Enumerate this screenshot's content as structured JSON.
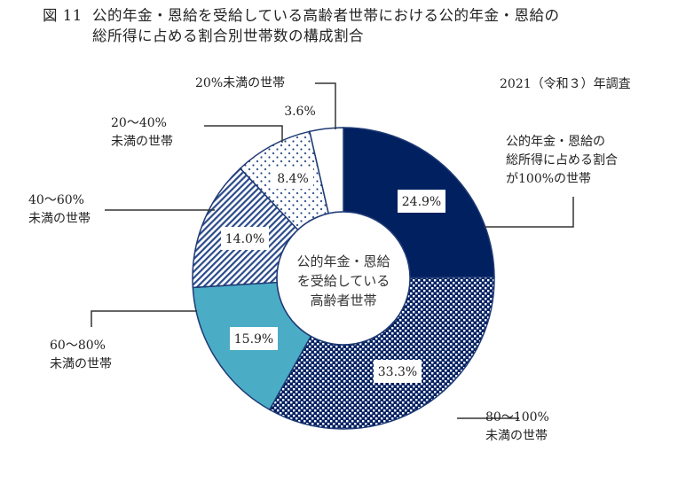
{
  "title": {
    "figure_no": "図 11",
    "line1": "公的年金・恩給を受給している高齢者世帯における公的年金・恩給の",
    "line2": "総所得に占める割合別世帯数の構成割合"
  },
  "survey_note": "2021（令和３）年調査",
  "center_label": [
    "公的年金・恩給",
    "を受給している",
    "高齢者世帯"
  ],
  "legend_labels": {
    "s100": [
      "公的年金・恩給の",
      "総所得に占める割合",
      "が100%の世帯"
    ],
    "s80_100": [
      "80～100%",
      "未満の世帯"
    ],
    "s60_80": [
      "60～80%",
      "未満の世帯"
    ],
    "s40_60": [
      "40～60%",
      "未満の世帯"
    ],
    "s20_40": [
      "20～40%",
      "未満の世帯"
    ],
    "s0_20": [
      "20%未満の世帯"
    ]
  },
  "value_labels": {
    "s100": "24.9%",
    "s80_100": "33.3%",
    "s60_80": "15.9%",
    "s40_60": "14.0%",
    "s20_40": "8.4%",
    "s0_20": "3.6%"
  },
  "colors": {
    "navy": "#002060",
    "teal": "#4bacc6",
    "outline": "#1f3a75",
    "white": "#ffffff"
  },
  "chart_data": {
    "type": "pie",
    "subtype": "donut",
    "title": "図 11 公的年金・恩給を受給している高齢者世帯における公的年金・恩給の総所得に占める割合別世帯数の構成割合",
    "subtitle": "2021（令和３）年調査",
    "center_text": "公的年金・恩給を受給している高齢者世帯",
    "categories": [
      "公的年金・恩給の総所得に占める割合が100%の世帯",
      "80～100%未満の世帯",
      "60～80%未満の世帯",
      "40～60%未満の世帯",
      "20～40%未満の世帯",
      "20%未満の世帯"
    ],
    "values": [
      24.9,
      33.3,
      15.9,
      14.0,
      8.4,
      3.6
    ],
    "unit": "%",
    "start_angle": "12 o'clock",
    "direction": "clockwise",
    "fills": [
      "solid navy",
      "navy checkerboard",
      "solid teal",
      "navy diagonal hatch",
      "navy dots",
      "white"
    ]
  }
}
